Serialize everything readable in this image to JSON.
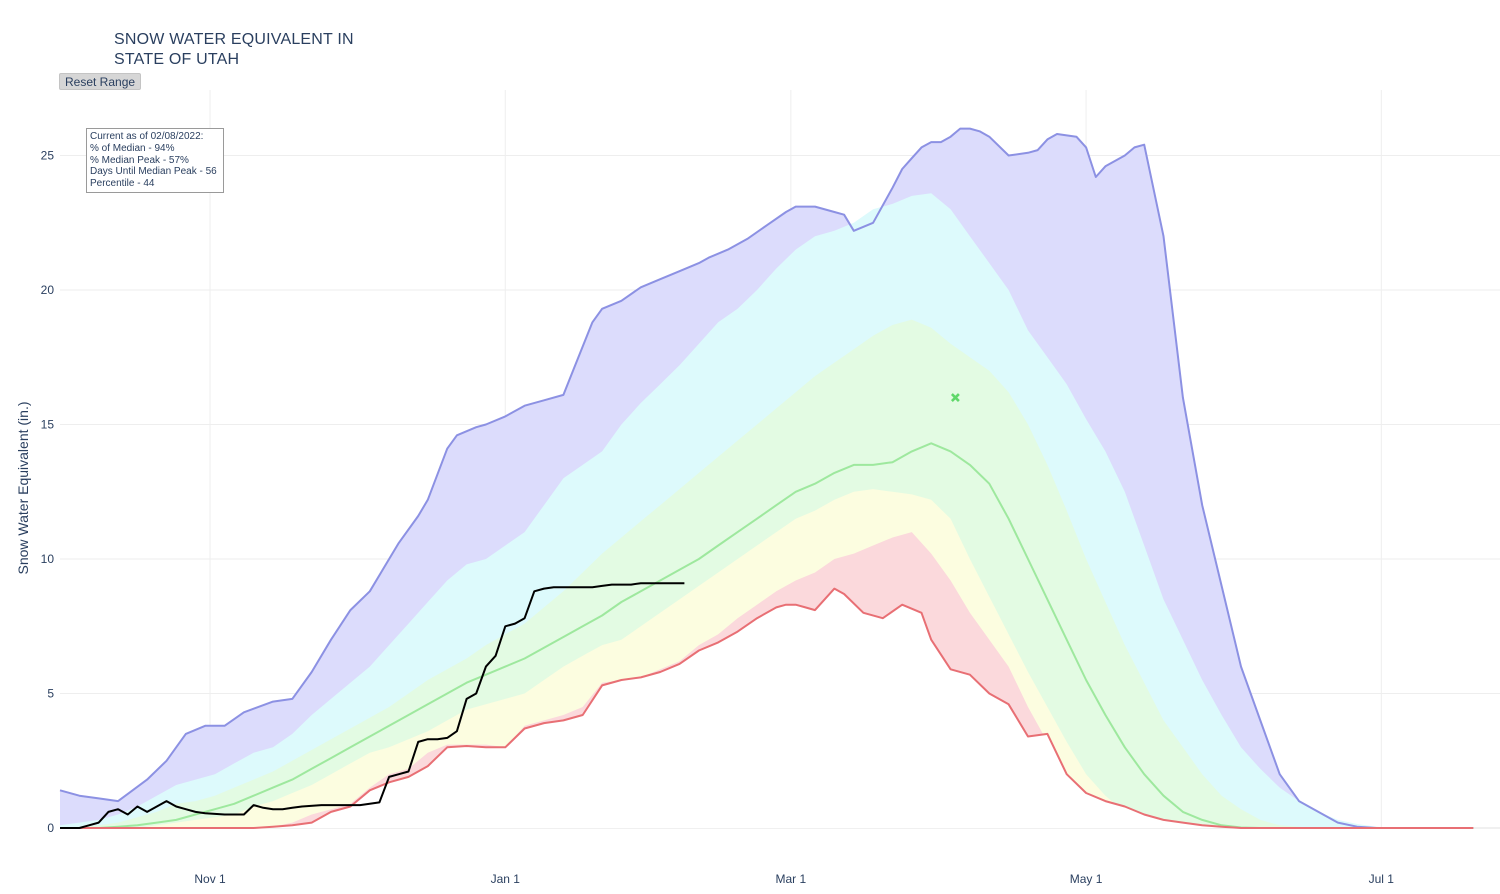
{
  "title": [
    "SNOW WATER EQUIVALENT IN",
    "STATE OF UTAH"
  ],
  "reset_label": "Reset Range",
  "status": [
    "Current as of 02/08/2022:",
    "% of Median - 94%",
    "% Median Peak - 57%",
    "Days Until Median Peak - 56",
    "Percentile - 44"
  ],
  "chart_data": {
    "type": "area",
    "ylabel": "Snow Water Equivalent (in.)",
    "xlabel": "",
    "x_axis": {
      "start": "Oct 1",
      "end": "Jul 20",
      "ticks": [
        {
          "label": "Nov  1",
          "day": 31
        },
        {
          "label": "Jan  1",
          "day": 92
        },
        {
          "label": "Mar  1",
          "day": 151
        },
        {
          "label": "May  1",
          "day": 212
        },
        {
          "label": "Jul  1",
          "day": 273
        }
      ]
    },
    "y_axis": {
      "range": [
        0,
        26.5
      ],
      "ticks": [
        0,
        5,
        10,
        15,
        20,
        25
      ]
    },
    "grid": true,
    "colors": {
      "max_fill": "#dcdcfc",
      "max_line": "#8c91e3",
      "p90_fill": "#ddfafc",
      "p70_fill": "#e3fbe3",
      "p30_fill": "#fcfde0",
      "p10_fill": "#fbd9dc",
      "median_line": "#9ee89e",
      "min_line": "#e86f74",
      "current_line": "#000000",
      "peak_marker": "#5fd86a"
    },
    "series": [
      {
        "role": "max",
        "x": [
          0,
          4,
          8,
          12,
          18,
          22,
          26,
          30,
          34,
          38,
          44,
          48,
          52,
          56,
          60,
          64,
          70,
          74,
          76,
          80,
          82,
          86,
          88,
          92,
          96,
          100,
          104,
          106,
          110,
          112,
          116,
          120,
          124,
          128,
          132,
          134,
          138,
          142,
          146,
          150,
          152,
          154,
          156,
          160,
          162,
          164,
          168,
          172,
          174,
          176,
          178,
          180,
          182,
          184,
          186,
          188,
          190,
          192,
          196,
          200,
          202,
          204,
          206,
          210,
          212,
          214,
          216,
          218,
          220,
          222,
          224,
          228,
          232,
          236,
          240,
          244,
          248,
          252,
          256,
          260,
          264,
          268,
          272,
          276,
          280,
          284,
          288,
          292
        ],
        "y": [
          1.4,
          1.2,
          1.1,
          1.0,
          1.8,
          2.5,
          3.5,
          3.8,
          3.8,
          4.3,
          4.7,
          4.8,
          5.8,
          7.0,
          8.1,
          8.8,
          10.6,
          11.6,
          12.2,
          14.1,
          14.6,
          14.9,
          15.0,
          15.3,
          15.7,
          15.9,
          16.1,
          17.0,
          18.8,
          19.3,
          19.6,
          20.1,
          20.4,
          20.7,
          21.0,
          21.2,
          21.5,
          21.9,
          22.4,
          22.9,
          23.1,
          23.1,
          23.1,
          22.9,
          22.8,
          22.2,
          22.5,
          23.8,
          24.5,
          24.9,
          25.3,
          25.5,
          25.5,
          25.7,
          26.0,
          26.0,
          25.9,
          25.7,
          25.0,
          25.1,
          25.2,
          25.6,
          25.8,
          25.7,
          25.3,
          24.2,
          24.6,
          24.8,
          25.0,
          25.3,
          25.4,
          22.0,
          16.0,
          12.0,
          9.0,
          6.0,
          4.0,
          2.0,
          1.0,
          0.6,
          0.2,
          0.05,
          0,
          0,
          0,
          0,
          0,
          0
        ]
      },
      {
        "role": "p90",
        "x": [
          0,
          4,
          8,
          12,
          16,
          20,
          24,
          28,
          32,
          36,
          40,
          44,
          48,
          52,
          56,
          60,
          64,
          68,
          72,
          76,
          80,
          84,
          88,
          92,
          96,
          100,
          104,
          108,
          112,
          116,
          120,
          124,
          128,
          132,
          136,
          140,
          144,
          148,
          152,
          156,
          160,
          164,
          168,
          172,
          176,
          180,
          184,
          188,
          192,
          196,
          200,
          204,
          208,
          212,
          216,
          220,
          224,
          228,
          232,
          236,
          240,
          244,
          248,
          252,
          256,
          260,
          264,
          268,
          272,
          276,
          280,
          284,
          288,
          292
        ],
        "y": [
          0.1,
          0.2,
          0.3,
          0.5,
          0.8,
          1.2,
          1.6,
          1.8,
          2.0,
          2.4,
          2.8,
          3.0,
          3.5,
          4.2,
          4.8,
          5.4,
          6.0,
          6.8,
          7.6,
          8.4,
          9.2,
          9.8,
          10.0,
          10.5,
          11.0,
          12.0,
          13.0,
          13.5,
          14.0,
          15.0,
          15.8,
          16.5,
          17.2,
          18.0,
          18.8,
          19.3,
          20.0,
          20.8,
          21.5,
          22.0,
          22.2,
          22.5,
          23.0,
          23.2,
          23.5,
          23.6,
          23.0,
          22.0,
          21.0,
          20.0,
          18.5,
          17.5,
          16.5,
          15.2,
          14.0,
          12.5,
          10.5,
          8.5,
          7.0,
          5.5,
          4.2,
          3.0,
          2.2,
          1.5,
          1.0,
          0.6,
          0.3,
          0.15,
          0.05,
          0,
          0,
          0,
          0,
          0
        ]
      },
      {
        "role": "p70",
        "x": [
          0,
          4,
          8,
          12,
          16,
          20,
          24,
          28,
          32,
          36,
          40,
          44,
          48,
          52,
          56,
          60,
          64,
          68,
          72,
          76,
          80,
          84,
          88,
          92,
          96,
          100,
          104,
          108,
          112,
          116,
          120,
          124,
          128,
          132,
          136,
          140,
          144,
          148,
          152,
          156,
          160,
          164,
          168,
          172,
          176,
          180,
          184,
          188,
          192,
          196,
          200,
          204,
          208,
          212,
          216,
          220,
          224,
          228,
          232,
          236,
          240,
          244,
          248,
          252,
          256,
          260,
          264,
          268,
          272,
          276,
          280,
          284,
          288,
          292
        ],
        "y": [
          0,
          0.05,
          0.1,
          0.2,
          0.4,
          0.6,
          0.9,
          1.0,
          1.2,
          1.5,
          1.8,
          2.1,
          2.5,
          2.9,
          3.3,
          3.7,
          4.1,
          4.5,
          5.0,
          5.5,
          5.9,
          6.3,
          6.8,
          7.2,
          7.6,
          8.2,
          8.8,
          9.5,
          10.2,
          10.8,
          11.4,
          12.0,
          12.6,
          13.2,
          13.8,
          14.4,
          15.0,
          15.6,
          16.2,
          16.8,
          17.3,
          17.8,
          18.3,
          18.7,
          18.9,
          18.6,
          18.0,
          17.5,
          17.0,
          16.2,
          15.0,
          13.5,
          11.8,
          10.0,
          8.4,
          6.8,
          5.4,
          4.0,
          3.0,
          2.0,
          1.2,
          0.7,
          0.3,
          0.1,
          0.05,
          0,
          0,
          0,
          0,
          0,
          0,
          0,
          0,
          0
        ]
      },
      {
        "role": "median",
        "x": [
          0,
          4,
          8,
          12,
          16,
          20,
          24,
          28,
          32,
          36,
          40,
          44,
          48,
          52,
          56,
          60,
          64,
          68,
          72,
          76,
          80,
          84,
          88,
          92,
          96,
          100,
          104,
          108,
          112,
          116,
          120,
          124,
          128,
          132,
          136,
          140,
          144,
          148,
          152,
          156,
          160,
          164,
          168,
          172,
          176,
          180,
          184,
          188,
          192,
          196,
          200,
          204,
          208,
          212,
          216,
          220,
          224,
          228,
          232,
          236,
          240,
          244,
          248,
          252,
          256,
          260,
          264,
          268,
          272,
          276,
          280,
          284,
          288,
          292
        ],
        "y": [
          0,
          0,
          0,
          0.05,
          0.1,
          0.2,
          0.3,
          0.5,
          0.7,
          0.9,
          1.2,
          1.5,
          1.8,
          2.2,
          2.6,
          3.0,
          3.4,
          3.8,
          4.2,
          4.6,
          5.0,
          5.4,
          5.7,
          6.0,
          6.3,
          6.7,
          7.1,
          7.5,
          7.9,
          8.4,
          8.8,
          9.2,
          9.6,
          10.0,
          10.5,
          11.0,
          11.5,
          12.0,
          12.5,
          12.8,
          13.2,
          13.5,
          13.5,
          13.6,
          14.0,
          14.3,
          14.0,
          13.5,
          12.8,
          11.5,
          10.0,
          8.5,
          7.0,
          5.5,
          4.2,
          3.0,
          2.0,
          1.2,
          0.6,
          0.3,
          0.1,
          0.02,
          0,
          0,
          0,
          0,
          0,
          0,
          0,
          0,
          0,
          0,
          0,
          0
        ]
      },
      {
        "role": "p30",
        "x": [
          0,
          4,
          8,
          12,
          16,
          20,
          24,
          28,
          32,
          36,
          40,
          44,
          48,
          52,
          56,
          60,
          64,
          68,
          72,
          76,
          80,
          84,
          88,
          92,
          96,
          100,
          104,
          108,
          112,
          116,
          120,
          124,
          128,
          132,
          136,
          140,
          144,
          148,
          152,
          156,
          160,
          164,
          168,
          172,
          176,
          180,
          184,
          188,
          192,
          196,
          200,
          204,
          208,
          212,
          216,
          220,
          224,
          228,
          232,
          236,
          240,
          244,
          248,
          252,
          256,
          260,
          264,
          268,
          272,
          276,
          280,
          284,
          288,
          292
        ],
        "y": [
          0,
          0,
          0,
          0,
          0,
          0.1,
          0.2,
          0.3,
          0.4,
          0.5,
          0.8,
          1.0,
          1.3,
          1.6,
          2.0,
          2.4,
          2.8,
          3.0,
          3.3,
          3.6,
          4.0,
          4.4,
          4.6,
          4.8,
          5.0,
          5.5,
          6.0,
          6.4,
          6.8,
          7.0,
          7.5,
          8.0,
          8.5,
          9.0,
          9.5,
          10.0,
          10.5,
          11.0,
          11.5,
          11.8,
          12.2,
          12.5,
          12.6,
          12.5,
          12.4,
          12.2,
          11.5,
          10.0,
          8.6,
          7.2,
          5.8,
          4.5,
          3.2,
          2.0,
          1.2,
          0.6,
          0.3,
          0.1,
          0.02,
          0,
          0,
          0,
          0,
          0,
          0,
          0,
          0,
          0,
          0,
          0,
          0,
          0,
          0,
          0
        ]
      },
      {
        "role": "p10",
        "x": [
          0,
          4,
          8,
          12,
          16,
          20,
          24,
          28,
          32,
          36,
          40,
          44,
          48,
          52,
          56,
          60,
          64,
          68,
          72,
          76,
          80,
          84,
          88,
          92,
          96,
          100,
          104,
          108,
          112,
          116,
          120,
          124,
          128,
          132,
          136,
          140,
          144,
          148,
          152,
          156,
          160,
          164,
          168,
          172,
          176,
          180,
          184,
          188,
          192,
          196,
          200,
          204,
          208,
          212,
          216,
          220,
          224,
          228,
          232,
          236,
          240,
          244,
          248,
          252,
          256,
          260,
          264,
          268,
          272,
          276,
          280,
          284,
          288,
          292
        ],
        "y": [
          0,
          0,
          0,
          0,
          0,
          0,
          0,
          0,
          0,
          0,
          0,
          0.05,
          0.2,
          0.5,
          0.7,
          0.9,
          1.5,
          2.0,
          2.2,
          2.8,
          3.1,
          3.1,
          3.1,
          3.0,
          3.8,
          4.0,
          4.2,
          4.5,
          5.4,
          5.5,
          5.6,
          5.9,
          6.2,
          6.8,
          7.2,
          7.8,
          8.3,
          8.8,
          9.2,
          9.5,
          10.0,
          10.2,
          10.5,
          10.8,
          11.0,
          10.2,
          9.2,
          8.0,
          7.0,
          6.0,
          4.5,
          3.2,
          2.0,
          1.2,
          0.7,
          0.4,
          0.2,
          0.1,
          0.05,
          0,
          0,
          0,
          0,
          0,
          0,
          0,
          0,
          0,
          0,
          0,
          0,
          0,
          0,
          0
        ]
      },
      {
        "role": "min",
        "x": [
          0,
          30,
          40,
          44,
          48,
          52,
          56,
          60,
          64,
          68,
          72,
          76,
          80,
          84,
          88,
          92,
          96,
          100,
          104,
          108,
          112,
          116,
          120,
          124,
          128,
          132,
          136,
          140,
          144,
          148,
          150,
          152,
          154,
          156,
          160,
          162,
          166,
          170,
          174,
          178,
          180,
          184,
          188,
          192,
          196,
          200,
          204,
          208,
          212,
          216,
          220,
          224,
          228,
          232,
          236,
          240,
          244,
          250,
          260,
          292
        ],
        "y": [
          0,
          0,
          0,
          0.05,
          0.1,
          0.2,
          0.6,
          0.8,
          1.4,
          1.7,
          1.9,
          2.3,
          3.0,
          3.05,
          3.0,
          3.0,
          3.7,
          3.9,
          4.0,
          4.2,
          5.3,
          5.5,
          5.6,
          5.8,
          6.1,
          6.6,
          6.9,
          7.3,
          7.8,
          8.2,
          8.3,
          8.3,
          8.2,
          8.1,
          8.9,
          8.7,
          8.0,
          7.8,
          8.3,
          8.0,
          7.0,
          5.9,
          5.7,
          5.0,
          4.6,
          3.4,
          3.5,
          2.0,
          1.3,
          1.0,
          0.8,
          0.5,
          0.3,
          0.2,
          0.1,
          0.05,
          0,
          0,
          0,
          0
        ]
      },
      {
        "role": "current",
        "x": [
          0,
          4,
          6,
          8,
          10,
          12,
          14,
          16,
          18,
          20,
          22,
          24,
          26,
          28,
          30,
          34,
          38,
          40,
          42,
          44,
          46,
          48,
          50,
          54,
          58,
          62,
          64,
          66,
          68,
          70,
          72,
          74,
          76,
          78,
          80,
          82,
          84,
          86,
          88,
          90,
          92,
          94,
          96,
          98,
          100,
          102,
          104,
          106,
          108,
          110,
          112,
          114,
          116,
          118,
          120,
          122,
          124,
          126,
          128,
          129
        ],
        "y": [
          0,
          0,
          0.1,
          0.2,
          0.6,
          0.7,
          0.5,
          0.8,
          0.6,
          0.8,
          1.0,
          0.8,
          0.7,
          0.6,
          0.55,
          0.5,
          0.5,
          0.85,
          0.75,
          0.7,
          0.7,
          0.75,
          0.8,
          0.85,
          0.85,
          0.85,
          0.9,
          0.95,
          1.9,
          2.0,
          2.1,
          3.2,
          3.3,
          3.3,
          3.35,
          3.6,
          4.8,
          5.0,
          6.0,
          6.4,
          7.5,
          7.6,
          7.8,
          8.8,
          8.9,
          8.95,
          8.95,
          8.95,
          8.95,
          8.95,
          9.0,
          9.05,
          9.05,
          9.05,
          9.1,
          9.1,
          9.1,
          9.1,
          9.1,
          9.1
        ]
      }
    ],
    "peak_marker": {
      "day": 185,
      "value": 16.0
    }
  }
}
